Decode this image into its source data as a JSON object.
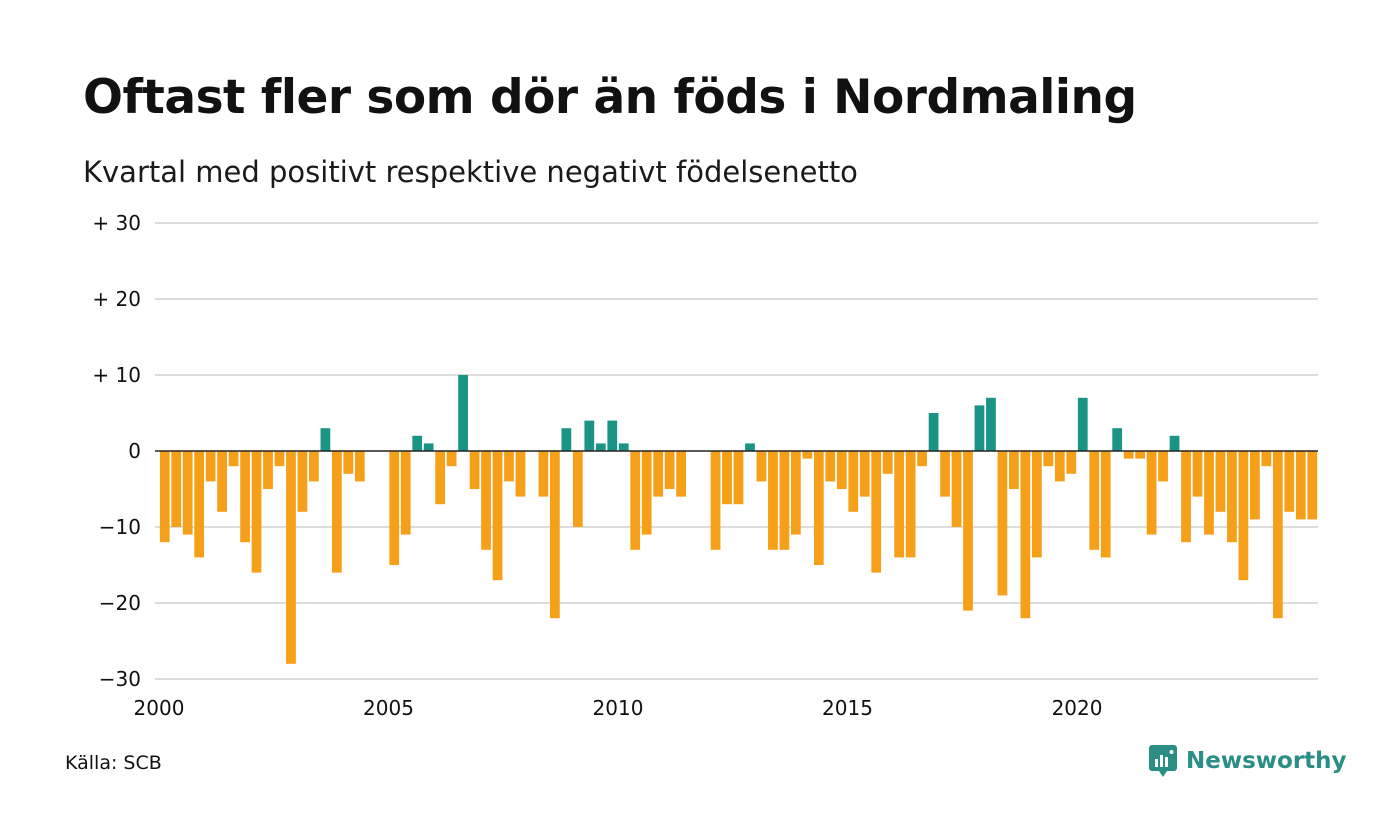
{
  "title": "Oftast fler som dör än föds i Nordmaling",
  "subtitle": "Kvartal med positivt respektive negativt födelsenetto",
  "source": "Källa: SCB",
  "brand": "Newsworthy",
  "colors": {
    "positive": "#1a9486",
    "negative": "#f6a01a",
    "grid": "#dddddd",
    "zero_line": "#222222",
    "brand": "#2a8d86"
  },
  "icons": {
    "brand_logo": "newsworthy-logo-icon"
  },
  "chart_data": {
    "type": "bar",
    "title": "Oftast fler som dör än föds i Nordmaling",
    "subtitle": "Kvartal med positivt respektive negativt födelsenetto",
    "xlabel": "",
    "ylabel": "",
    "ylim": [
      -30,
      30
    ],
    "yticks": [
      30,
      20,
      10,
      0,
      -10,
      -20,
      -30
    ],
    "ytick_labels": [
      "+ 30",
      "+ 20",
      "+ 10",
      "0",
      "−10",
      "−20",
      "−30"
    ],
    "xticks": [
      2000,
      2005,
      2010,
      2015,
      2020
    ],
    "grid": true,
    "x_start_year": 2000,
    "quarters_per_year": 4,
    "values": [
      -12,
      -10,
      -11,
      -14,
      -4,
      -8,
      -2,
      -12,
      -16,
      -5,
      -2,
      -28,
      -8,
      -4,
      3,
      -16,
      -3,
      -4,
      0,
      0,
      -15,
      -11,
      2,
      1,
      -7,
      -2,
      10,
      -5,
      -13,
      -17,
      -4,
      -6,
      0,
      -6,
      -22,
      3,
      -10,
      4,
      1,
      4,
      1,
      -13,
      -11,
      -6,
      -5,
      -6,
      0,
      0,
      -13,
      -7,
      -7,
      1,
      -4,
      -13,
      -13,
      -11,
      -1,
      -15,
      -4,
      -5,
      -8,
      -6,
      -16,
      -3,
      -14,
      -14,
      -2,
      5,
      -6,
      -10,
      -21,
      6,
      7,
      -19,
      -5,
      -22,
      -14,
      -2,
      -4,
      -3,
      7,
      -13,
      -14,
      3,
      -1,
      -1,
      -11,
      -4,
      2,
      -12,
      -6,
      -11,
      -8,
      -12,
      -17,
      -9,
      -2,
      -22,
      -8,
      -9,
      -9
    ]
  }
}
